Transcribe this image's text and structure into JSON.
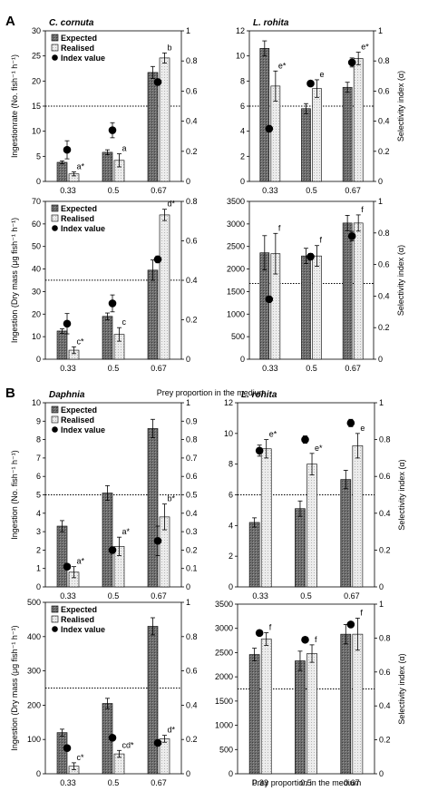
{
  "colors": {
    "expected": "#6d6d6d",
    "realised": "#e6e6e6",
    "index": "#000000"
  },
  "chart_data": [
    {
      "type": "bar",
      "panel_label": "A",
      "title": "C. cornuta",
      "categories": [
        "0.33",
        "0.5",
        "0.67"
      ],
      "xlabel": "",
      "ylabel": "Ingestionrate (No. fish⁻¹ h⁻¹)",
      "ylim": [
        0,
        30
      ],
      "yticks": [
        "0",
        "5",
        "10",
        "15",
        "20",
        "25",
        "30"
      ],
      "y2ticks": [
        "0",
        "0.2",
        "0.4",
        "0.6",
        "0.8",
        "1"
      ],
      "y2lim": [
        0,
        1
      ],
      "ref_line": 0.5,
      "legend": {
        "entries": [
          "Expected",
          "Realised",
          "Index value"
        ],
        "placement": "top-left"
      },
      "series": [
        {
          "name": "Expected",
          "values": [
            3.8,
            5.8,
            21.7
          ],
          "errors": [
            0.3,
            0.5,
            1.2
          ]
        },
        {
          "name": "Realised",
          "values": [
            1.5,
            4.2,
            24.6
          ],
          "errors": [
            0.4,
            1.3,
            1.0
          ]
        }
      ],
      "index": {
        "name": "Index value",
        "values": [
          0.21,
          0.34,
          0.66
        ],
        "errors": [
          0.06,
          0.05,
          0.02
        ]
      },
      "annotations": [
        "a*",
        "a",
        "b"
      ]
    },
    {
      "type": "bar",
      "title": "L. rohita",
      "categories": [
        "0.33",
        "0.5",
        "0.67"
      ],
      "xlabel": "",
      "ylabel": "",
      "y2label": "Selectivity index (α)",
      "ylim": [
        0,
        12
      ],
      "yticks": [
        "0",
        "2",
        "4",
        "6",
        "8",
        "10",
        "12"
      ],
      "y2ticks": [
        "0",
        "0.2",
        "0.4",
        "0.6",
        "0.8",
        "1"
      ],
      "y2lim": [
        0,
        1
      ],
      "ref_line": 0.5,
      "series": [
        {
          "name": "Expected",
          "values": [
            10.6,
            5.8,
            7.5
          ],
          "errors": [
            0.6,
            0.4,
            0.4
          ]
        },
        {
          "name": "Realised",
          "values": [
            7.6,
            7.4,
            9.8
          ],
          "errors": [
            1.2,
            0.7,
            0.5
          ]
        }
      ],
      "index": {
        "name": "Index value",
        "values": [
          0.35,
          0.65,
          0.79
        ],
        "errors": [
          0,
          0,
          0.03
        ]
      },
      "annotations": [
        "e*",
        "e",
        "e*"
      ]
    },
    {
      "type": "bar",
      "categories": [
        "0.33",
        "0.5",
        "0.67"
      ],
      "xlabel": "Prey proportion in the medium",
      "ylabel": "Ingestion (Dry mass (μg fish⁻¹ h⁻¹)",
      "ylim": [
        0,
        70
      ],
      "yticks": [
        "0",
        "10",
        "20",
        "30",
        "40",
        "50",
        "60",
        "70"
      ],
      "y2ticks": [
        "0",
        "0.2",
        "0.4",
        "0.6",
        "0.8"
      ],
      "y2lim": [
        0,
        0.933
      ],
      "ref_line": 0.467,
      "legend": {
        "entries": [
          "Expected",
          "Realised",
          "Index value"
        ],
        "placement": "top-left"
      },
      "series": [
        {
          "name": "Expected",
          "values": [
            12.5,
            19,
            39.5
          ],
          "errors": [
            1.0,
            1.5,
            4.5
          ]
        },
        {
          "name": "Realised",
          "values": [
            4,
            11,
            64
          ],
          "errors": [
            1.5,
            3.0,
            2.5
          ]
        }
      ],
      "index": {
        "name": "Index value",
        "values": [
          0.21,
          0.33,
          0.59
        ],
        "errors": [
          0.06,
          0.05,
          0.02
        ]
      },
      "annotations": [
        "c*",
        "c",
        "d*"
      ]
    },
    {
      "type": "bar",
      "categories": [
        "0.33",
        "0.5",
        "0.67"
      ],
      "xlabel": "Prey proportion in the medium",
      "ylabel": "",
      "y2label": "Selectivity index (α)",
      "ylim": [
        0,
        3500
      ],
      "yticks": [
        "0",
        "500",
        "1000",
        "1500",
        "2000",
        "2500",
        "3000",
        "3500"
      ],
      "y2ticks": [
        "0",
        "0.2",
        "0.4",
        "0.6",
        "0.8",
        "1"
      ],
      "y2lim": [
        0,
        1
      ],
      "ref_line": 0.48,
      "series": [
        {
          "name": "Expected",
          "values": [
            2360,
            2290,
            3020
          ],
          "errors": [
            380,
            170,
            170
          ]
        },
        {
          "name": "Realised",
          "values": [
            2340,
            2290,
            3020
          ],
          "errors": [
            450,
            230,
            180
          ]
        }
      ],
      "index": {
        "name": "Index value",
        "values": [
          0.38,
          0.65,
          0.78
        ],
        "errors": [
          0,
          0.02,
          0.03
        ]
      },
      "annotations": [
        "f",
        "f",
        "f"
      ]
    },
    {
      "type": "bar",
      "panel_label": "B",
      "title": "Daphnia",
      "categories": [
        "0.33",
        "0.5",
        "0.67"
      ],
      "xlabel": "",
      "ylabel": "Ingestion (No. fish⁻¹ h⁻¹)",
      "ylim": [
        0,
        10
      ],
      "yticks": [
        "0",
        "1",
        "2",
        "3",
        "4",
        "5",
        "6",
        "7",
        "8",
        "9",
        "10"
      ],
      "y2ticks": [
        "0",
        "0.1",
        "0.2",
        "0.3",
        "0.4",
        "0.5",
        "0.6",
        "0.7",
        "0.8",
        "0.9",
        "1"
      ],
      "y2lim": [
        0,
        1
      ],
      "ref_line": 0.5,
      "legend": {
        "entries": [
          "Expected",
          "Realised",
          "Index value"
        ],
        "placement": "top-left"
      },
      "series": [
        {
          "name": "Expected",
          "values": [
            3.3,
            5.1,
            8.6
          ],
          "errors": [
            0.3,
            0.4,
            0.5
          ]
        },
        {
          "name": "Realised",
          "values": [
            0.8,
            2.2,
            3.8
          ],
          "errors": [
            0.3,
            0.5,
            0.7
          ]
        }
      ],
      "index": {
        "name": "Index value",
        "values": [
          0.11,
          0.2,
          0.25
        ],
        "errors": [
          0,
          0,
          0.08
        ]
      },
      "annotations": [
        "a*",
        "a*",
        "b*"
      ]
    },
    {
      "type": "bar",
      "title": "L. rohita",
      "categories": [
        "0.33",
        "0.5",
        "0.67"
      ],
      "xlabel": "",
      "ylabel": "",
      "y2label": "Selectivity index (α)",
      "ylim": [
        0,
        12
      ],
      "yticks": [
        "0",
        "2",
        "4",
        "6",
        "8",
        "10",
        "12"
      ],
      "y2ticks": [
        "0",
        "0.2",
        "0.4",
        "0.6",
        "0.8",
        "1"
      ],
      "y2lim": [
        0,
        1
      ],
      "ref_line": 0.5,
      "series": [
        {
          "name": "Expected",
          "values": [
            4.2,
            5.1,
            7.0
          ],
          "errors": [
            0.3,
            0.5,
            0.6
          ]
        },
        {
          "name": "Realised",
          "values": [
            9.0,
            8.0,
            9.2
          ],
          "errors": [
            0.6,
            0.7,
            0.8
          ]
        }
      ],
      "index": {
        "name": "Index value",
        "values": [
          0.74,
          0.8,
          0.89
        ],
        "errors": [
          0.03,
          0.02,
          0.02
        ]
      },
      "annotations": [
        "e*",
        "e*",
        "e"
      ]
    },
    {
      "type": "bar",
      "categories": [
        "0.33",
        "0.5",
        "0.67"
      ],
      "xlabel": "",
      "ylabel": "Ingestion (Dry mass (μg fish⁻¹ h⁻¹)",
      "ylim": [
        0,
        500
      ],
      "yticks": [
        "0",
        "100",
        "200",
        "300",
        "400",
        "500"
      ],
      "y2ticks": [
        "0",
        "0.2",
        "0.4",
        "0.6",
        "0.8",
        "1"
      ],
      "y2lim": [
        0,
        1
      ],
      "ref_line": 0.5,
      "legend": {
        "entries": [
          "Expected",
          "Realised",
          "Index value"
        ],
        "placement": "top-left"
      },
      "series": [
        {
          "name": "Expected",
          "values": [
            120,
            205,
            430
          ],
          "errors": [
            10,
            15,
            25
          ]
        },
        {
          "name": "Realised",
          "values": [
            22,
            58,
            102
          ],
          "errors": [
            10,
            10,
            10
          ]
        }
      ],
      "index": {
        "name": "Index value",
        "values": [
          0.15,
          0.21,
          0.18
        ],
        "errors": [
          0,
          0,
          0
        ]
      },
      "annotations": [
        "c*",
        "cd*",
        "d*"
      ]
    },
    {
      "type": "bar",
      "categories": [
        "0.33",
        "0.5",
        "0.67"
      ],
      "xlabel": "Prey proportion in the medium",
      "ylabel": "",
      "y2label": "Selectivity index (α)",
      "ylim": [
        0,
        3500
      ],
      "yticks": [
        "0",
        "500",
        "1000",
        "1500",
        "2000",
        "2500",
        "3000",
        "3500"
      ],
      "y2ticks": [
        "0",
        "0.2",
        "0.4",
        "0.6",
        "0.8",
        "1"
      ],
      "y2lim": [
        0,
        1
      ],
      "ref_line": 0.5,
      "series": [
        {
          "name": "Expected",
          "values": [
            2460,
            2330,
            2880
          ],
          "errors": [
            130,
            200,
            200
          ]
        },
        {
          "name": "Realised",
          "values": [
            2780,
            2480,
            2880
          ],
          "errors": [
            130,
            180,
            330
          ]
        }
      ],
      "index": {
        "name": "Index value",
        "values": [
          0.83,
          0.79,
          0.88
        ],
        "errors": [
          0,
          0,
          0
        ]
      },
      "annotations": [
        "f",
        "f",
        "f"
      ]
    }
  ]
}
